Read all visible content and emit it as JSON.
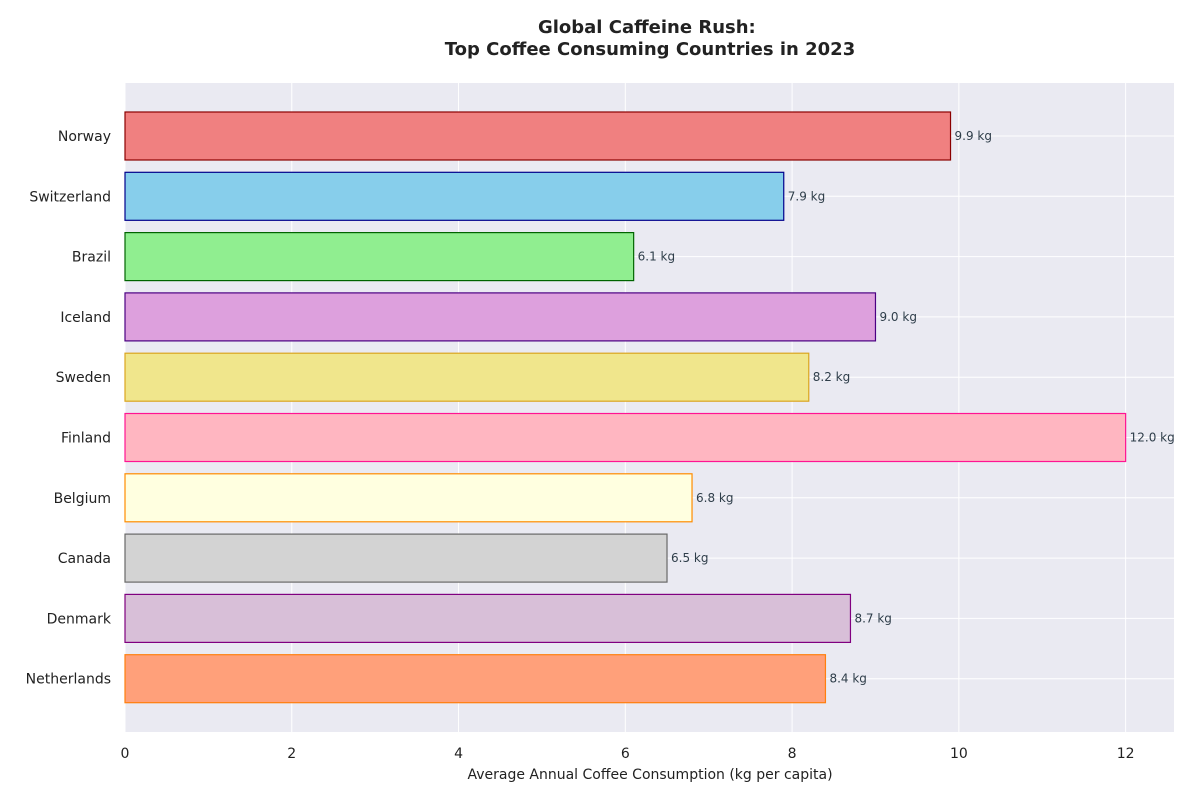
{
  "chart_data": {
    "type": "bar",
    "orientation": "horizontal",
    "title": "Global Caffeine Rush:\nTop Coffee Consuming Countries in 2023",
    "xlabel": "Average Annual Coffee Consumption (kg per capita)",
    "ylabel": "",
    "xlim": [
      0,
      12.58
    ],
    "x_ticks": [
      0,
      2,
      4,
      6,
      8,
      10,
      12
    ],
    "grid": true,
    "categories": [
      "Norway",
      "Switzerland",
      "Brazil",
      "Iceland",
      "Sweden",
      "Finland",
      "Belgium",
      "Canada",
      "Denmark",
      "Netherlands"
    ],
    "values": [
      9.9,
      7.9,
      6.1,
      9.0,
      8.2,
      12.0,
      6.8,
      6.5,
      8.7,
      8.4
    ],
    "value_labels": [
      "9.9 kg",
      "7.9 kg",
      "6.1 kg",
      "9.0 kg",
      "8.2 kg",
      "12.0 kg",
      "6.8 kg",
      "6.5 kg",
      "8.7 kg",
      "8.4 kg"
    ],
    "bar_fill_colors": [
      "#f08080",
      "#87ceeb",
      "#90ee90",
      "#dda0dd",
      "#f0e68c",
      "#ffb6c1",
      "#ffffe0",
      "#d3d3d3",
      "#d8bfd8",
      "#ffa07a"
    ],
    "bar_edge_colors": [
      "#8b0000",
      "#00008b",
      "#006400",
      "#4b0082",
      "#daa520",
      "#ff1493",
      "#ff8c00",
      "#696969",
      "#800080",
      "#ff7f0e"
    ],
    "plot_background": "#eaeaf2",
    "grid_color": "#ffffff"
  }
}
